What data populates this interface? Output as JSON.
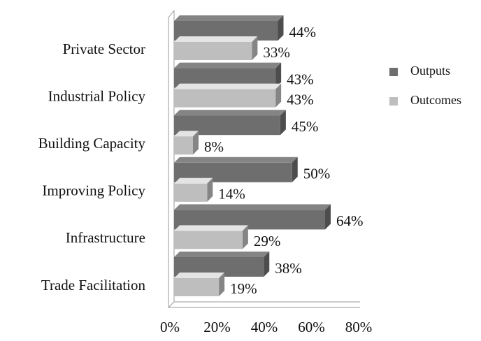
{
  "chart_data": {
    "type": "bar",
    "orientation": "horizontal",
    "bar_style": "3d",
    "categories": [
      "Private Sector",
      "Industrial Policy",
      "Building Capacity",
      "Improving Policy",
      "Infrastructure",
      "Trade Facilitation"
    ],
    "series": [
      {
        "name": "Outputs",
        "color": "#6e6e6e",
        "values": [
          44,
          43,
          45,
          50,
          64,
          38
        ],
        "value_labels": [
          "44%",
          "43%",
          "45%",
          "50%",
          "64%",
          "38%"
        ]
      },
      {
        "name": "Outcomes",
        "color": "#bebebe",
        "values": [
          33,
          43,
          8,
          14,
          29,
          19
        ],
        "value_labels": [
          "33%",
          "43%",
          "8%",
          "14%",
          "29%",
          "19%"
        ]
      }
    ],
    "xlim": [
      0,
      80
    ],
    "xticks": [
      {
        "value": 0,
        "label": "0%"
      },
      {
        "value": 20,
        "label": "20%"
      },
      {
        "value": 40,
        "label": "40%"
      },
      {
        "value": 60,
        "label": "60%"
      },
      {
        "value": 80,
        "label": "80%"
      }
    ],
    "legend": "right"
  }
}
